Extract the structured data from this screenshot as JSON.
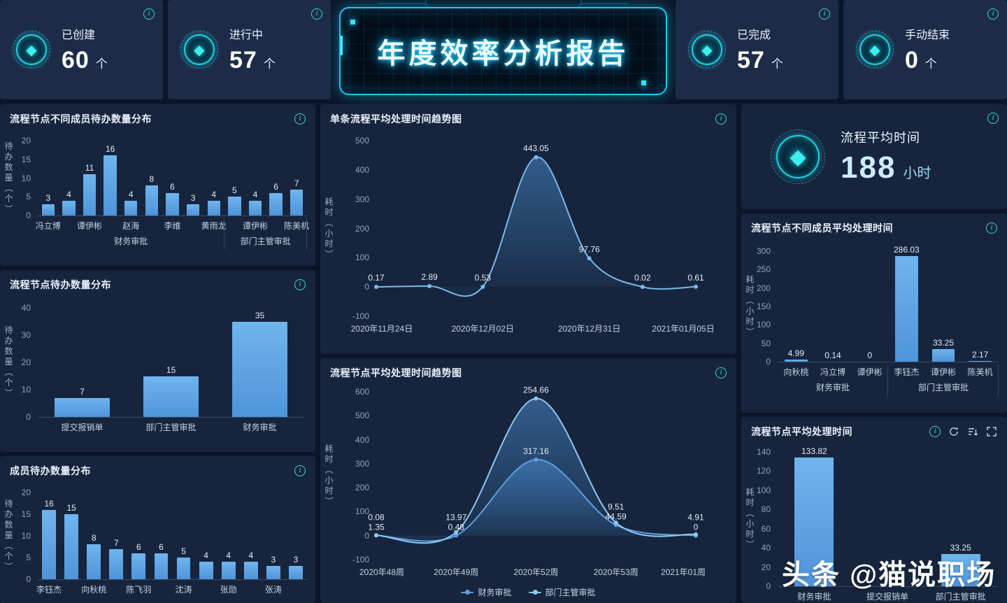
{
  "header": {
    "title": "年度效率分析报告",
    "kpis": [
      {
        "label": "已创建",
        "value": "60",
        "unit": "个"
      },
      {
        "label": "进行中",
        "value": "57",
        "unit": "个"
      },
      {
        "label": "已完成",
        "value": "57",
        "unit": "个"
      },
      {
        "label": "手动结束",
        "value": "0",
        "unit": "个"
      }
    ]
  },
  "avg_time_card": {
    "title": "流程平均时间",
    "value": "188",
    "unit": "小时"
  },
  "watermark": "头条 @猫说职场",
  "icons": {
    "info": "i",
    "gem": "◆",
    "refresh": "circular-arrow",
    "sort": "sort-lines",
    "fullscreen": "expand-corners"
  },
  "colors": {
    "page_bg": "#0A1628",
    "card_bg": "#16253D",
    "accent_cyan": "#1ED4E4",
    "bar_blue": "#5EA6E6",
    "line_blue": "#7CB9EC"
  },
  "chart_data": [
    {
      "id": "node-member-todo",
      "type": "bar",
      "title": "流程节点不同成员待办数量分布",
      "ylabel": "待办数量（个）",
      "ylim": [
        0,
        20
      ],
      "yticks": [
        0,
        5,
        10,
        15,
        20
      ],
      "categories": [
        "冯立博",
        "",
        "谭伊彬",
        "",
        "赵海",
        "",
        "李维",
        "",
        "黄雨龙",
        "",
        "谭伊彬",
        "",
        "陈美机"
      ],
      "values": [
        3,
        4,
        11,
        16,
        4,
        8,
        6,
        3,
        4,
        5,
        4,
        6,
        7
      ],
      "groups": [
        {
          "label": "财务审批",
          "from": 0,
          "to": 8
        },
        {
          "label": "部门主管审批",
          "from": 9,
          "to": 12
        }
      ]
    },
    {
      "id": "node-todo",
      "type": "bar",
      "title": "流程节点待办数量分布",
      "ylabel": "待办数量（个）",
      "ylim": [
        0,
        40
      ],
      "yticks": [
        0,
        10,
        20,
        30,
        40
      ],
      "categories": [
        "提交报销单",
        "部门主管审批",
        "财务审批"
      ],
      "values": [
        7,
        15,
        35
      ]
    },
    {
      "id": "member-todo",
      "type": "bar",
      "title": "成员待办数量分布",
      "ylabel": "待办数量（个）",
      "ylim": [
        0,
        20
      ],
      "yticks": [
        0,
        5,
        10,
        15,
        20
      ],
      "categories": [
        "李钰杰",
        "",
        "向秋桃",
        "",
        "陈飞羽",
        "",
        "沈涛",
        "",
        "张勋",
        "",
        "张涛",
        ""
      ],
      "values": [
        16,
        15,
        8,
        7,
        6,
        6,
        5,
        4,
        4,
        4,
        3,
        3
      ]
    },
    {
      "id": "single-trend",
      "type": "line",
      "title": "单条流程平均处理时间趋势图",
      "ylabel": "耗时（小时）",
      "ylim": [
        -100,
        500
      ],
      "yticks": [
        -100,
        0,
        100,
        200,
        300,
        400,
        500
      ],
      "x_labels": [
        "2020年11月24日",
        "",
        "2020年12月02日",
        "",
        "2020年12月31日",
        "",
        "2021年01月05日"
      ],
      "series": [
        {
          "name": "单条流程",
          "color": "#7CB9EC",
          "values": [
            0.17,
            2.89,
            0.53,
            443.05,
            97.76,
            0.02,
            0.61
          ]
        }
      ]
    },
    {
      "id": "node-trend",
      "type": "line",
      "stacked": true,
      "legend": true,
      "title": "流程节点平均处理时间趋势图",
      "ylabel": "耗时（小时）",
      "ylim": [
        -100,
        600
      ],
      "yticks": [
        -100,
        0,
        100,
        200,
        300,
        400,
        500,
        600
      ],
      "x_labels": [
        "2020年48周",
        "2020年49周",
        "2020年52周",
        "2020年53周",
        "2021年01周"
      ],
      "series": [
        {
          "name": "财务审批",
          "color": "#5E9FE0",
          "values": [
            1.35,
            0.48,
            317.16,
            44.59,
            0
          ]
        },
        {
          "name": "部门主管审批",
          "color": "#8FC8F2",
          "values": [
            0.08,
            13.97,
            254.66,
            9.51,
            4.91
          ]
        }
      ]
    },
    {
      "id": "member-avg-time",
      "type": "bar",
      "title": "流程节点不同成员平均处理时间",
      "ylabel": "耗时（小时）",
      "ylim": [
        0,
        300
      ],
      "yticks": [
        0,
        50,
        100,
        150,
        200,
        250,
        300
      ],
      "categories": [
        "向秋桃",
        "冯立博",
        "谭伊彬",
        "李钰杰",
        "谭伊彬",
        "陈美机"
      ],
      "values": [
        4.99,
        0.14,
        0,
        286.03,
        33.25,
        2.17
      ],
      "groups": [
        {
          "label": "财务审批",
          "from": 0,
          "to": 2
        },
        {
          "label": "部门主管审批",
          "from": 3,
          "to": 5
        }
      ]
    },
    {
      "id": "node-avg-time",
      "type": "bar",
      "title": "流程节点平均处理时间",
      "ylabel": "耗时（小时）",
      "ylim": [
        0,
        140
      ],
      "yticks": [
        0,
        20,
        40,
        60,
        80,
        100,
        120,
        140
      ],
      "categories": [
        "财务审批",
        "提交报销单",
        "部门主管审批"
      ],
      "values": [
        133.82,
        null,
        33.25
      ]
    }
  ]
}
